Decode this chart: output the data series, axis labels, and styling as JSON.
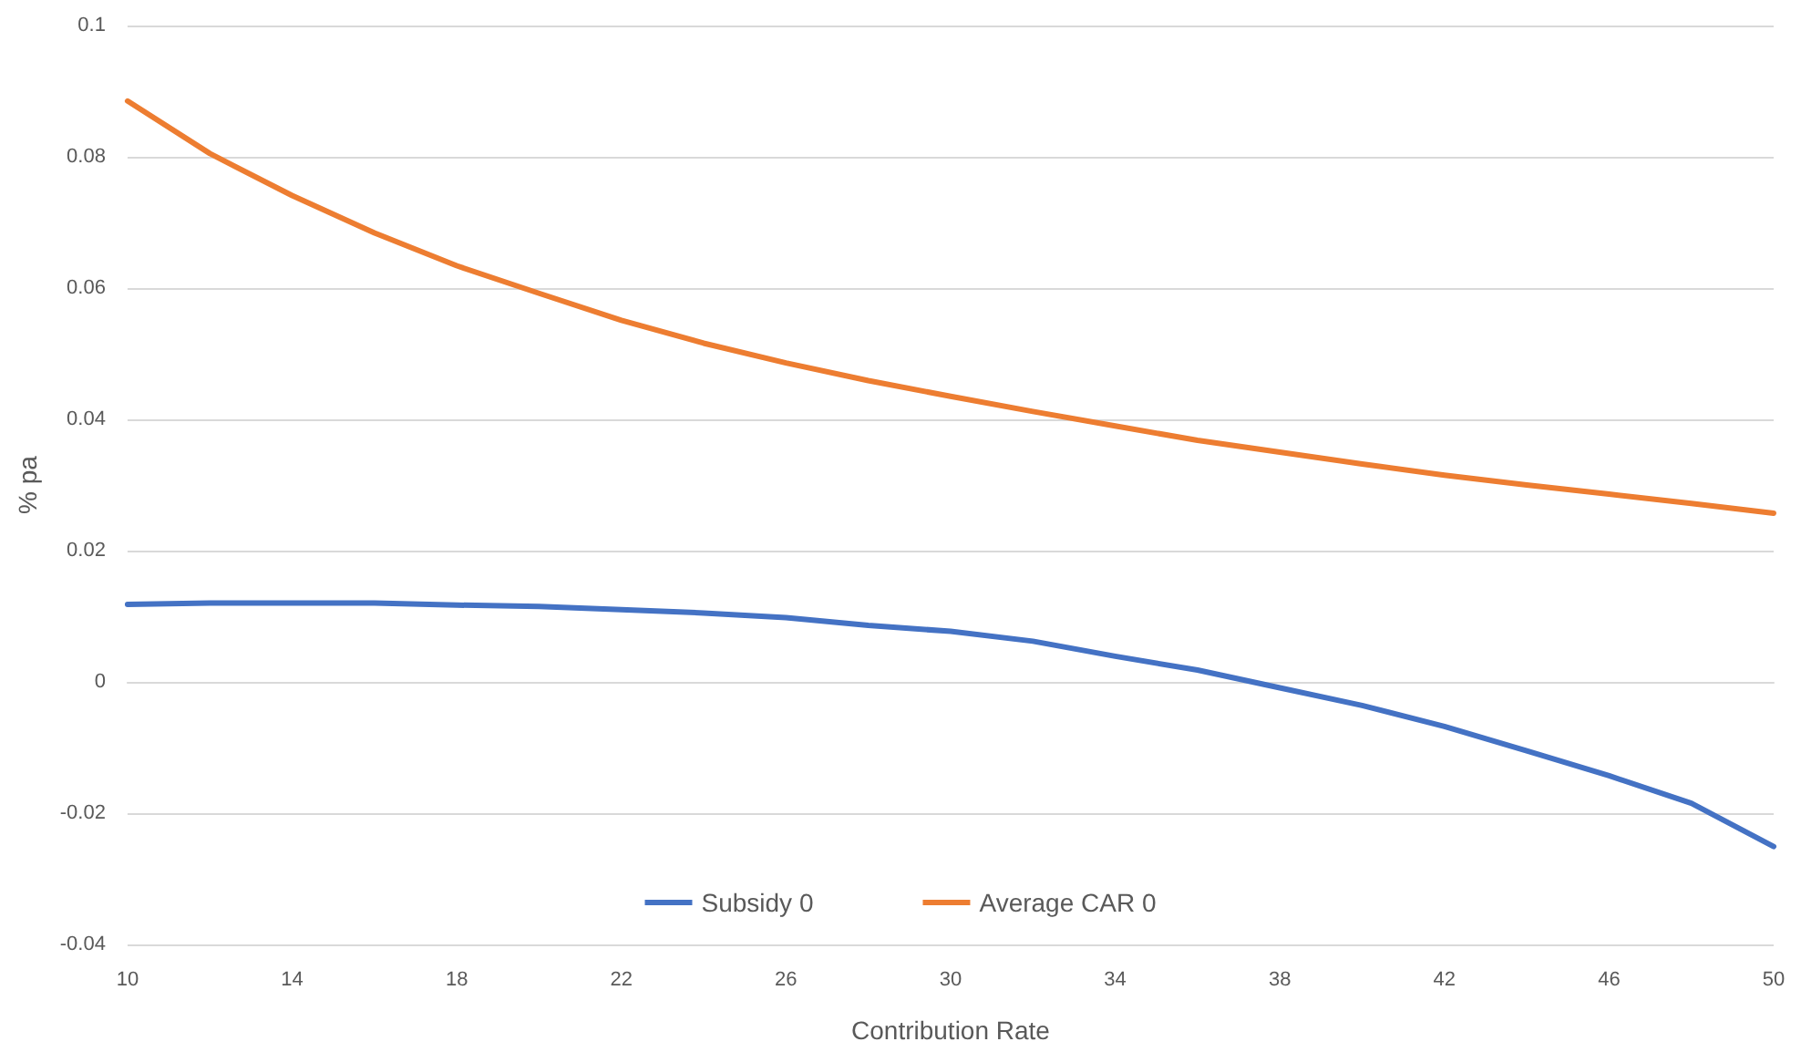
{
  "chart_data": {
    "type": "line",
    "xlabel": "Contribution Rate",
    "ylabel": "% pa",
    "x": [
      10,
      12,
      14,
      16,
      18,
      20,
      22,
      24,
      26,
      28,
      30,
      32,
      34,
      36,
      38,
      40,
      42,
      44,
      46,
      48,
      50
    ],
    "series": [
      {
        "name": "Subsidy 0",
        "color": "#4472c4",
        "values": [
          0.0118,
          0.012,
          0.012,
          0.012,
          0.0117,
          0.0115,
          0.011,
          0.0105,
          0.0098,
          0.0086,
          0.0077,
          0.0062,
          0.0039,
          0.0018,
          -0.0009,
          -0.0036,
          -0.0068,
          -0.0105,
          -0.0143,
          -0.0185,
          -0.0251
        ]
      },
      {
        "name": "Average CAR 0",
        "color": "#ed7d31",
        "values": [
          0.0885,
          0.0805,
          0.0741,
          0.0684,
          0.0634,
          0.0592,
          0.0551,
          0.0516,
          0.0486,
          0.0459,
          0.0435,
          0.0412,
          0.039,
          0.0368,
          0.035,
          0.0332,
          0.0315,
          0.03,
          0.0286,
          0.0272,
          0.0257
        ]
      }
    ],
    "xlim": [
      10,
      50
    ],
    "xticks": [
      10,
      14,
      18,
      22,
      26,
      30,
      34,
      38,
      42,
      46,
      50
    ],
    "ylim": [
      -0.04,
      0.1
    ],
    "yticks": [
      -0.04,
      -0.02,
      0,
      0.02,
      0.04,
      0.06,
      0.08,
      0.1
    ],
    "grid": "y",
    "legend": "bottom",
    "marker": "none",
    "line_style": "solid"
  }
}
